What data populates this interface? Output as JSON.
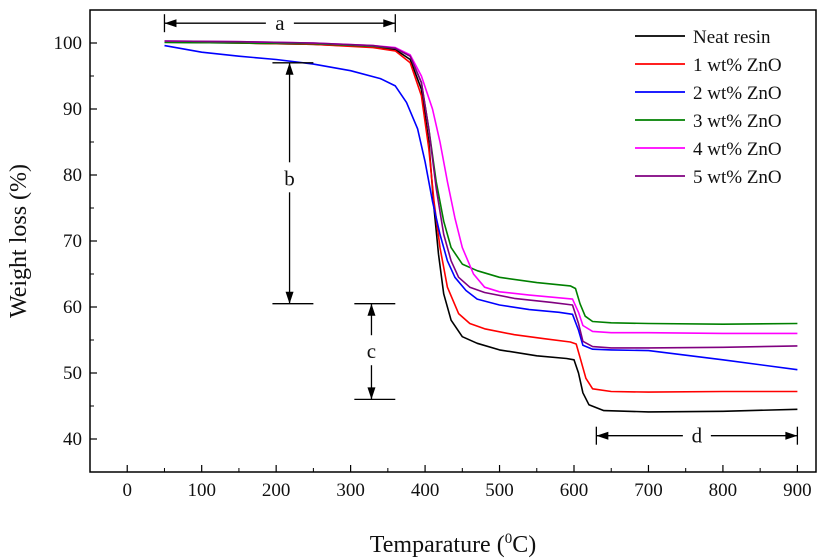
{
  "chart_data": {
    "type": "line",
    "xlabel": "Temparature (",
    "xlabel_sup": "0",
    "xlabel_tail": "C)",
    "ylabel": "Weight loss (%)",
    "xlim": [
      -50,
      925
    ],
    "ylim": [
      35,
      105
    ],
    "xticks": [
      0,
      100,
      200,
      300,
      400,
      500,
      600,
      700,
      800,
      900
    ],
    "yticks": [
      40,
      50,
      60,
      70,
      80,
      90,
      100
    ],
    "legend_position": "top-right",
    "grid": false,
    "series": [
      {
        "name": "Neat resin",
        "color": "#000000",
        "points": [
          [
            50,
            100.1
          ],
          [
            150,
            100.0
          ],
          [
            250,
            99.8
          ],
          [
            330,
            99.4
          ],
          [
            360,
            99.0
          ],
          [
            380,
            97.5
          ],
          [
            395,
            93
          ],
          [
            405,
            85
          ],
          [
            412,
            75
          ],
          [
            418,
            68
          ],
          [
            425,
            62
          ],
          [
            435,
            58
          ],
          [
            450,
            55.5
          ],
          [
            470,
            54.5
          ],
          [
            500,
            53.5
          ],
          [
            550,
            52.6
          ],
          [
            590,
            52.2
          ],
          [
            600,
            52.0
          ],
          [
            606,
            50
          ],
          [
            612,
            47
          ],
          [
            620,
            45.2
          ],
          [
            640,
            44.3
          ],
          [
            700,
            44.1
          ],
          [
            800,
            44.2
          ],
          [
            900,
            44.5
          ]
        ]
      },
      {
        "name": "1 wt% ZnO",
        "color": "#ff0000",
        "points": [
          [
            50,
            100.2
          ],
          [
            150,
            100.0
          ],
          [
            250,
            99.8
          ],
          [
            330,
            99.3
          ],
          [
            360,
            98.8
          ],
          [
            380,
            97
          ],
          [
            395,
            92
          ],
          [
            405,
            84
          ],
          [
            412,
            76
          ],
          [
            420,
            69
          ],
          [
            430,
            63
          ],
          [
            445,
            59
          ],
          [
            460,
            57.5
          ],
          [
            480,
            56.7
          ],
          [
            520,
            55.8
          ],
          [
            560,
            55.2
          ],
          [
            595,
            54.7
          ],
          [
            603,
            54.4
          ],
          [
            609,
            52
          ],
          [
            616,
            49.2
          ],
          [
            625,
            47.6
          ],
          [
            650,
            47.2
          ],
          [
            700,
            47.1
          ],
          [
            800,
            47.2
          ],
          [
            900,
            47.2
          ]
        ]
      },
      {
        "name": "2 wt% ZnO",
        "color": "#0000ff",
        "points": [
          [
            50,
            99.6
          ],
          [
            100,
            98.6
          ],
          [
            150,
            98.0
          ],
          [
            200,
            97.5
          ],
          [
            250,
            96.8
          ],
          [
            300,
            95.8
          ],
          [
            340,
            94.6
          ],
          [
            360,
            93.5
          ],
          [
            375,
            91
          ],
          [
            390,
            87
          ],
          [
            400,
            82
          ],
          [
            410,
            76
          ],
          [
            420,
            71
          ],
          [
            430,
            67
          ],
          [
            440,
            64.5
          ],
          [
            455,
            62.5
          ],
          [
            470,
            61.2
          ],
          [
            500,
            60.3
          ],
          [
            540,
            59.6
          ],
          [
            580,
            59.2
          ],
          [
            598,
            58.9
          ],
          [
            606,
            56.5
          ],
          [
            612,
            54.2
          ],
          [
            625,
            53.6
          ],
          [
            650,
            53.5
          ],
          [
            700,
            53.4
          ],
          [
            800,
            52
          ],
          [
            900,
            50.5
          ]
        ]
      },
      {
        "name": "3 wt% ZnO",
        "color": "#008000",
        "points": [
          [
            50,
            100.1
          ],
          [
            150,
            100.0
          ],
          [
            250,
            99.9
          ],
          [
            330,
            99.5
          ],
          [
            360,
            99.2
          ],
          [
            380,
            98
          ],
          [
            395,
            94
          ],
          [
            405,
            87
          ],
          [
            415,
            79
          ],
          [
            425,
            73
          ],
          [
            435,
            69
          ],
          [
            450,
            66.5
          ],
          [
            470,
            65.5
          ],
          [
            500,
            64.5
          ],
          [
            550,
            63.7
          ],
          [
            595,
            63.2
          ],
          [
            602,
            62.8
          ],
          [
            608,
            60.5
          ],
          [
            615,
            58.6
          ],
          [
            625,
            57.8
          ],
          [
            650,
            57.6
          ],
          [
            700,
            57.5
          ],
          [
            800,
            57.4
          ],
          [
            900,
            57.5
          ]
        ]
      },
      {
        "name": "4 wt% ZnO",
        "color": "#ff00ff",
        "points": [
          [
            50,
            100.3
          ],
          [
            150,
            100.2
          ],
          [
            250,
            100.0
          ],
          [
            330,
            99.6
          ],
          [
            360,
            99.3
          ],
          [
            380,
            98.2
          ],
          [
            395,
            95
          ],
          [
            410,
            90
          ],
          [
            420,
            85
          ],
          [
            430,
            79
          ],
          [
            440,
            73.5
          ],
          [
            450,
            69
          ],
          [
            465,
            65
          ],
          [
            480,
            63
          ],
          [
            500,
            62.3
          ],
          [
            540,
            61.8
          ],
          [
            580,
            61.4
          ],
          [
            598,
            61.2
          ],
          [
            606,
            59.2
          ],
          [
            612,
            57.2
          ],
          [
            625,
            56.3
          ],
          [
            650,
            56.1
          ],
          [
            700,
            56.1
          ],
          [
            800,
            56.0
          ],
          [
            900,
            56.0
          ]
        ]
      },
      {
        "name": "5 wt% ZnO",
        "color": "#800080",
        "points": [
          [
            50,
            100.3
          ],
          [
            150,
            100.2
          ],
          [
            250,
            100.0
          ],
          [
            330,
            99.6
          ],
          [
            360,
            99.2
          ],
          [
            380,
            98
          ],
          [
            395,
            94
          ],
          [
            405,
            87
          ],
          [
            415,
            78
          ],
          [
            425,
            71
          ],
          [
            435,
            67
          ],
          [
            445,
            64.5
          ],
          [
            460,
            63
          ],
          [
            480,
            62.2
          ],
          [
            520,
            61.3
          ],
          [
            570,
            60.7
          ],
          [
            598,
            60.3
          ],
          [
            606,
            57.5
          ],
          [
            612,
            54.8
          ],
          [
            625,
            54.0
          ],
          [
            650,
            53.8
          ],
          [
            700,
            53.8
          ],
          [
            800,
            53.9
          ],
          [
            900,
            54.1
          ]
        ]
      }
    ],
    "annotations": [
      {
        "label": "a",
        "type": "h-arrow",
        "x1": 50,
        "x2": 360,
        "y": 103,
        "label_x": 205
      },
      {
        "label": "b",
        "type": "v-arrow",
        "x": 218,
        "y1": 97,
        "y2": 60.5,
        "label_y": 79.5,
        "capL": 195,
        "capR": 250
      },
      {
        "label": "c",
        "type": "v-arrow",
        "x": 328,
        "y1": 60.5,
        "y2": 46,
        "label_y": 53.3,
        "capL": 305,
        "capR": 360
      },
      {
        "label": "d",
        "type": "h-arrow",
        "x1": 630,
        "x2": 900,
        "y": 40.5,
        "label_x": 765
      }
    ]
  }
}
